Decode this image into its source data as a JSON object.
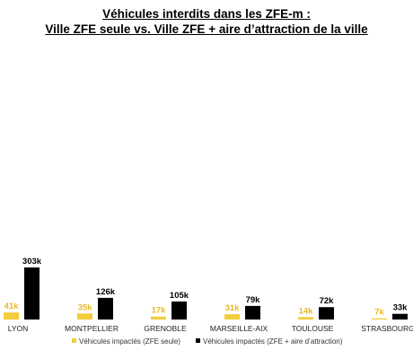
{
  "colors": {
    "zfe": "#F2CD3C",
    "aire": "#000000",
    "zfe_label": "#E6B92A",
    "aire_label": "#000000"
  },
  "chart_data": {
    "type": "bar",
    "title": "Véhicules interdits dans les ZFE-m :",
    "subtitle": "Ville ZFE seule vs. Ville ZFE + aire d’attraction de la ville",
    "categories": [
      "LYON",
      "MONTPELLIER",
      "GRENOBLE",
      "MARSEILLE-AIX",
      "TOULOUSE",
      "STRASBOURG"
    ],
    "series": [
      {
        "name": "Véhicules impactés (ZFE seule)",
        "values": [
          41,
          35,
          17,
          31,
          14,
          7
        ],
        "labels": [
          "41k",
          "35k",
          "17k",
          "31k",
          "14k",
          "7k"
        ]
      },
      {
        "name": "Véhicules impactés (ZFE + aire d’attraction)",
        "values": [
          303,
          126,
          105,
          79,
          72,
          33
        ],
        "labels": [
          "303k",
          "126k",
          "105k",
          "79k",
          "72k",
          "33k"
        ]
      }
    ],
    "unit": "k",
    "ylim": [
      0,
      303
    ],
    "grid": false,
    "legend_position": "bottom"
  }
}
